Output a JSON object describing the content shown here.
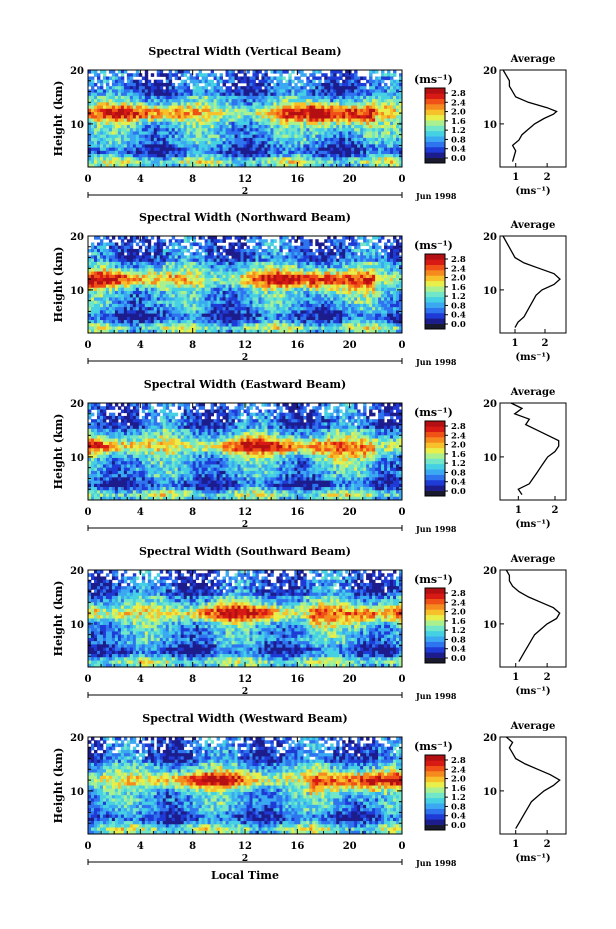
{
  "figure": {
    "xlabel": "Local Time",
    "date_label": "Jun 1998",
    "day_label": "2",
    "height_label": "Height (km)",
    "unit_label": "(ms⁻¹)",
    "avg_title": "Average"
  },
  "colorbar": {
    "ticks": [
      "2.8",
      "2.4",
      "2.0",
      "1.6",
      "1.2",
      "0.8",
      "0.4",
      "0.0"
    ],
    "colors": [
      "#1a1a2e",
      "#1c1c8c",
      "#1f3bd6",
      "#2f74ef",
      "#3ba9f2",
      "#46d0e3",
      "#72e6c8",
      "#aaf08f",
      "#e8ee4a",
      "#f7c12b",
      "#f58b1e",
      "#ef5117",
      "#d81a14",
      "#b40f12"
    ]
  },
  "chart_data": [
    {
      "type": "heatmap",
      "title": "Spectral Width (Vertical Beam)",
      "x_ticks": [
        "0",
        "4",
        "8",
        "12",
        "16",
        "20",
        "0"
      ],
      "y_ticks": [
        "20",
        "10"
      ],
      "xlim": [
        0,
        24
      ],
      "ylim": [
        2,
        20
      ],
      "avg": {
        "xticks": [
          "1",
          "2"
        ],
        "xlim": [
          0.5,
          2.6
        ],
        "xlabel": "(ms⁻¹)",
        "profile": [
          [
            0.9,
            3
          ],
          [
            1.0,
            5
          ],
          [
            0.9,
            6
          ],
          [
            1.1,
            7
          ],
          [
            1.2,
            8
          ],
          [
            1.4,
            9
          ],
          [
            1.6,
            10
          ],
          [
            1.9,
            11
          ],
          [
            2.2,
            11.8
          ],
          [
            2.3,
            12.3
          ],
          [
            2.0,
            13
          ],
          [
            1.4,
            14
          ],
          [
            1.0,
            15
          ],
          [
            0.9,
            16
          ],
          [
            0.8,
            17
          ],
          [
            0.8,
            18
          ],
          [
            0.7,
            19
          ],
          [
            0.6,
            20
          ]
        ]
      }
    },
    {
      "type": "heatmap",
      "title": "Spectral Width (Northward Beam)",
      "x_ticks": [
        "0",
        "4",
        "8",
        "12",
        "16",
        "20",
        "0"
      ],
      "y_ticks": [
        "20",
        "10"
      ],
      "xlim": [
        0,
        24
      ],
      "ylim": [
        2,
        20
      ],
      "avg": {
        "xticks": [
          "1",
          "2"
        ],
        "xlim": [
          0.5,
          2.7
        ],
        "xlabel": "(ms⁻¹)",
        "profile": [
          [
            1.0,
            3
          ],
          [
            1.1,
            4
          ],
          [
            1.3,
            5
          ],
          [
            1.4,
            6
          ],
          [
            1.5,
            7
          ],
          [
            1.6,
            8
          ],
          [
            1.7,
            9
          ],
          [
            1.9,
            10
          ],
          [
            2.3,
            11
          ],
          [
            2.5,
            12
          ],
          [
            2.3,
            13
          ],
          [
            1.8,
            14
          ],
          [
            1.3,
            15
          ],
          [
            1.0,
            16
          ],
          [
            0.9,
            17
          ],
          [
            0.8,
            18
          ],
          [
            0.7,
            19
          ],
          [
            0.6,
            20
          ]
        ]
      }
    },
    {
      "type": "heatmap",
      "title": "Spectral Width (Eastward Beam)",
      "x_ticks": [
        "0",
        "4",
        "8",
        "12",
        "16",
        "20",
        "0"
      ],
      "y_ticks": [
        "20",
        "10"
      ],
      "xlim": [
        0,
        24
      ],
      "ylim": [
        2,
        20
      ],
      "avg": {
        "xticks": [
          "1",
          "2"
        ],
        "xlim": [
          0.5,
          2.3
        ],
        "xlabel": "(ms⁻¹)",
        "profile": [
          [
            1.1,
            3
          ],
          [
            1.0,
            4
          ],
          [
            1.3,
            5
          ],
          [
            1.4,
            6
          ],
          [
            1.5,
            7
          ],
          [
            1.6,
            8
          ],
          [
            1.7,
            9
          ],
          [
            1.8,
            10
          ],
          [
            2.0,
            11
          ],
          [
            2.1,
            12
          ],
          [
            2.1,
            13
          ],
          [
            1.8,
            14
          ],
          [
            1.5,
            15
          ],
          [
            1.2,
            16
          ],
          [
            1.3,
            17
          ],
          [
            0.9,
            18
          ],
          [
            1.1,
            19
          ],
          [
            0.8,
            20
          ]
        ]
      }
    },
    {
      "type": "heatmap",
      "title": "Spectral Width (Southward Beam)",
      "x_ticks": [
        "0",
        "4",
        "8",
        "12",
        "16",
        "20",
        "0"
      ],
      "y_ticks": [
        "20",
        "10"
      ],
      "xlim": [
        0,
        24
      ],
      "ylim": [
        2,
        20
      ],
      "avg": {
        "xticks": [
          "1",
          "2"
        ],
        "xlim": [
          0.5,
          2.6
        ],
        "xlabel": "(ms⁻¹)",
        "profile": [
          [
            1.1,
            3
          ],
          [
            1.2,
            4
          ],
          [
            1.3,
            5
          ],
          [
            1.4,
            6
          ],
          [
            1.5,
            7
          ],
          [
            1.6,
            8
          ],
          [
            1.8,
            9
          ],
          [
            2.0,
            10
          ],
          [
            2.3,
            11
          ],
          [
            2.4,
            12
          ],
          [
            2.2,
            13
          ],
          [
            1.8,
            14
          ],
          [
            1.4,
            15
          ],
          [
            1.1,
            16
          ],
          [
            0.9,
            17
          ],
          [
            0.8,
            18
          ],
          [
            0.8,
            19
          ],
          [
            0.7,
            20
          ]
        ]
      }
    },
    {
      "type": "heatmap",
      "title": "Spectral Width (Westward Beam)",
      "x_ticks": [
        "0",
        "4",
        "8",
        "12",
        "16",
        "20",
        "0"
      ],
      "y_ticks": [
        "20",
        "10"
      ],
      "xlim": [
        0,
        24
      ],
      "ylim": [
        2,
        20
      ],
      "avg": {
        "xticks": [
          "1",
          "2"
        ],
        "xlim": [
          0.5,
          2.6
        ],
        "xlabel": "(ms⁻¹)",
        "profile": [
          [
            1.0,
            3
          ],
          [
            1.1,
            4
          ],
          [
            1.2,
            5
          ],
          [
            1.3,
            6
          ],
          [
            1.4,
            7
          ],
          [
            1.5,
            8
          ],
          [
            1.7,
            9
          ],
          [
            1.9,
            10
          ],
          [
            2.2,
            11
          ],
          [
            2.4,
            12
          ],
          [
            2.1,
            13
          ],
          [
            1.7,
            14
          ],
          [
            1.3,
            15
          ],
          [
            1.0,
            16
          ],
          [
            0.9,
            17
          ],
          [
            0.8,
            18
          ],
          [
            0.9,
            19
          ],
          [
            0.7,
            20
          ]
        ]
      }
    }
  ]
}
